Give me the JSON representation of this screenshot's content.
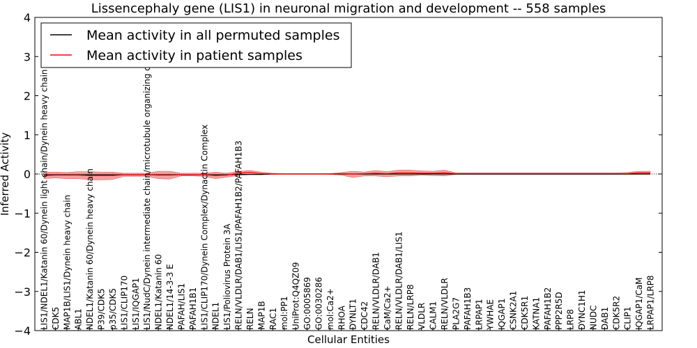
{
  "chart_data": {
    "type": "line",
    "title": "Lissencephaly gene (LIS1) in neuronal migration and development -- 558 samples",
    "xlabel": "Cellular Entities",
    "ylabel": "Inferred Activity",
    "ylim": [
      -4,
      4
    ],
    "yticks": [
      -4,
      -3,
      -2,
      -1,
      0,
      1,
      2,
      3,
      4
    ],
    "ytick_labels": [
      "−4",
      "−3",
      "−2",
      "−1",
      "0",
      "1",
      "2",
      "3",
      "4"
    ],
    "legend_position": "top-left",
    "categories": [
      "LIS1/NDEL1/Katanin 60/Dynein light chain/Dynein heavy chain",
      "CDK5",
      "MAP1B/LIS1/Dynein heavy chain",
      "ABL1",
      "NDEL1/Katanin 60/Dynein heavy chain",
      "P39/CDK5",
      "p35/CDK5",
      "LIS1/CLIP170",
      "LIS1/IQGAP1",
      "LIS1/NudC/Dynein intermediate chain/microtubule organizing center",
      "NDEL1/Katanin 60",
      "NDEL1/14-3-3 E",
      "PAFAH/LIS1",
      "PAFAH1B1",
      "LIS1/CLIP170/Dynein Complex/Dynactin Complex",
      "NDEL1",
      "LIS1/Poliovirus Protein 3A",
      "RELN/VLDLR/DAB1/LIS1/PAFAH1B2/PAFAH1B3",
      "RELN",
      "MAP1B",
      "RAC1",
      "mol:PP1",
      "UniProt:Q4QZ09",
      "GO:0005869",
      "GO:0030286",
      "mol:Ca2+",
      "RHOA",
      "DYNLT1",
      "CDC42",
      "RELN/VLDLR/DAB1",
      "CaM/Ca2+",
      "RELN/VLDLR/DAB1/LIS1",
      "RELN/LRP8",
      "VLDLR",
      "CALM1",
      "RELN/VLDLR",
      "PLA2G7",
      "PAFAH1B3",
      "LRPAP1",
      "YWHAE",
      "IQGAP1",
      "CSNK2A1",
      "CDK5R1",
      "KATNA1",
      "PAFAH1B2",
      "PPP2R5D",
      "LRP8",
      "DYNC1H1",
      "NUDC",
      "DAB1",
      "CDK5R2",
      "CLIP1",
      "IQGAP1/CaM",
      "LRPAP1/LRP8"
    ],
    "series": [
      {
        "name": "Mean activity in all permuted samples",
        "color": "#000000",
        "values": [
          -0.02,
          -0.02,
          -0.02,
          -0.02,
          -0.02,
          -0.02,
          -0.02,
          -0.02,
          -0.02,
          -0.02,
          -0.02,
          -0.02,
          -0.02,
          -0.02,
          -0.02,
          -0.02,
          -0.02,
          -0.01,
          -0.01,
          -0.01,
          0,
          0,
          0,
          0,
          0,
          0,
          0,
          0,
          0,
          0,
          0,
          0,
          0,
          0,
          0,
          0,
          0,
          0,
          0,
          0,
          0,
          0,
          0,
          0,
          0,
          0,
          0,
          0,
          0,
          0,
          0,
          0,
          0,
          0
        ]
      },
      {
        "name": "Mean activity in patient samples",
        "color": "#ff0000",
        "band_color": "#f08080",
        "values": [
          -0.04,
          -0.03,
          -0.03,
          -0.03,
          -0.04,
          -0.04,
          -0.04,
          -0.02,
          -0.02,
          -0.02,
          -0.03,
          -0.03,
          -0.02,
          -0.02,
          -0.02,
          -0.04,
          -0.03,
          0.02,
          0.04,
          0.01,
          0,
          0,
          0,
          0,
          0,
          0,
          0.01,
          0,
          0.01,
          0.02,
          0.01,
          0.03,
          0.03,
          0.02,
          0.02,
          0.03,
          0.01,
          0.01,
          0.01,
          0.01,
          0.01,
          0.01,
          0.01,
          0.01,
          0.01,
          0.01,
          0.01,
          0.01,
          0.01,
          0.01,
          0.01,
          0.01,
          0.03,
          0.03
        ],
        "band_low": [
          -0.12,
          -0.1,
          -0.12,
          -0.12,
          -0.15,
          -0.15,
          -0.14,
          -0.06,
          -0.06,
          -0.06,
          -0.12,
          -0.13,
          -0.05,
          -0.05,
          -0.06,
          -0.12,
          -0.08,
          -0.04,
          -0.02,
          -0.02,
          -0.01,
          0,
          0,
          0,
          0,
          -0.01,
          -0.03,
          -0.09,
          -0.05,
          -0.05,
          -0.07,
          -0.05,
          -0.05,
          -0.03,
          -0.04,
          -0.05,
          -0.01,
          -0.01,
          -0.01,
          -0.01,
          -0.01,
          -0.01,
          -0.01,
          -0.01,
          -0.01,
          -0.01,
          -0.01,
          -0.01,
          -0.01,
          -0.01,
          -0.01,
          -0.01,
          -0.01,
          -0.01
        ],
        "band_high": [
          0.05,
          0.05,
          0.04,
          0.06,
          0.06,
          0.05,
          0.05,
          0.02,
          0.02,
          0.02,
          0.07,
          0.07,
          0.02,
          0.02,
          0.02,
          0.05,
          0.02,
          0.07,
          0.09,
          0.05,
          0.02,
          0.01,
          0.01,
          0.01,
          0.01,
          0.01,
          0.04,
          0.07,
          0.05,
          0.09,
          0.06,
          0.1,
          0.1,
          0.08,
          0.07,
          0.1,
          0.03,
          0.03,
          0.03,
          0.03,
          0.03,
          0.03,
          0.03,
          0.03,
          0.03,
          0.03,
          0.03,
          0.03,
          0.03,
          0.03,
          0.03,
          0.04,
          0.07,
          0.07
        ]
      }
    ]
  }
}
